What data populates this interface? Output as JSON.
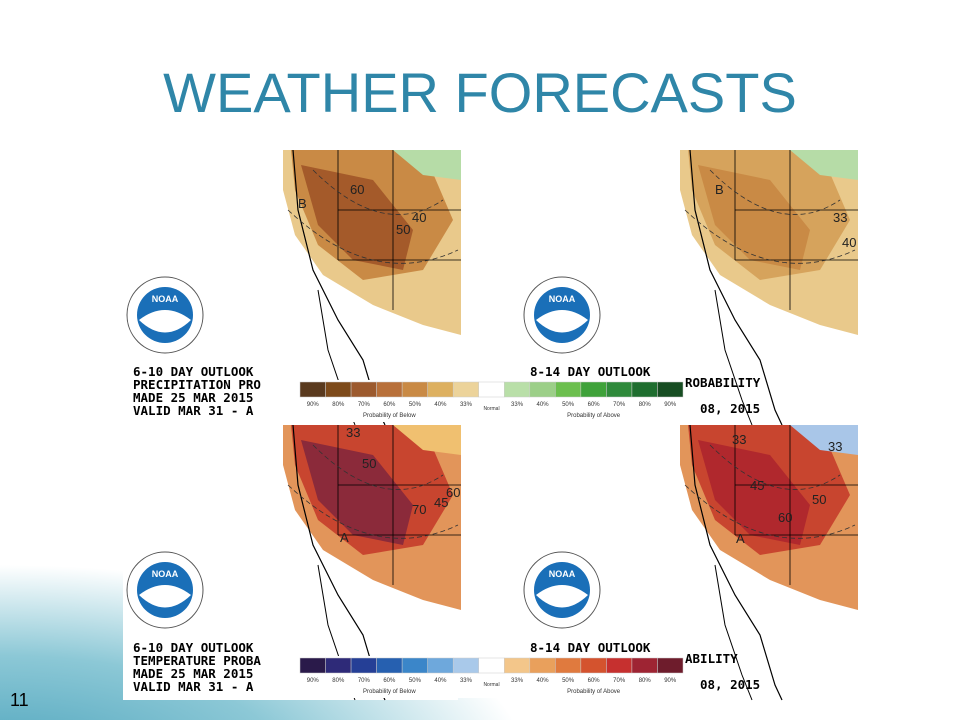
{
  "title": "WEATHER FORECASTS",
  "slide_number": "11",
  "panels": [
    {
      "logo": "NOAA",
      "outlook": [
        "6-10 DAY OUTLOOK",
        "PRECIPITATION PRO",
        "MADE  25 MAR 2015",
        "VALID  MAR 31 - A"
      ],
      "labels": [
        "B",
        "60",
        "50",
        "40"
      ]
    },
    {
      "logo": "NOAA",
      "outlook": [
        "8-14 DAY OUTLOOK",
        "ROBABILITY",
        "08, 2015"
      ],
      "labels": [
        "B",
        "33",
        "40"
      ]
    },
    {
      "logo": "NOAA",
      "outlook": [
        "6-10 DAY OUTLOOK",
        "TEMPERATURE PROBA",
        "MADE  25 MAR 2015",
        "VALID  MAR 31 - A"
      ],
      "labels": [
        "A",
        "33",
        "50",
        "60",
        "70",
        "45"
      ]
    },
    {
      "logo": "NOAA",
      "outlook": [
        "8-14 DAY OUTLOOK",
        "ABILITY",
        "08, 2015"
      ],
      "labels": [
        "A",
        "33",
        "33",
        "45",
        "50",
        "60"
      ]
    }
  ],
  "legends": [
    {
      "ticks": [
        "90%",
        "80%",
        "70%",
        "60%",
        "50%",
        "40%",
        "33%",
        "33%",
        "40%",
        "50%",
        "60%",
        "70%",
        "80%",
        "90%"
      ],
      "below": "Probability of Below",
      "normal": "Normal",
      "above": "Probability of Above"
    },
    {
      "ticks": [
        "90%",
        "80%",
        "70%",
        "60%",
        "50%",
        "40%",
        "33%",
        "33%",
        "40%",
        "50%",
        "60%",
        "70%",
        "80%",
        "90%"
      ],
      "below": "Probability of Below",
      "normal": "Normal",
      "above": "Probability of Above"
    }
  ]
}
